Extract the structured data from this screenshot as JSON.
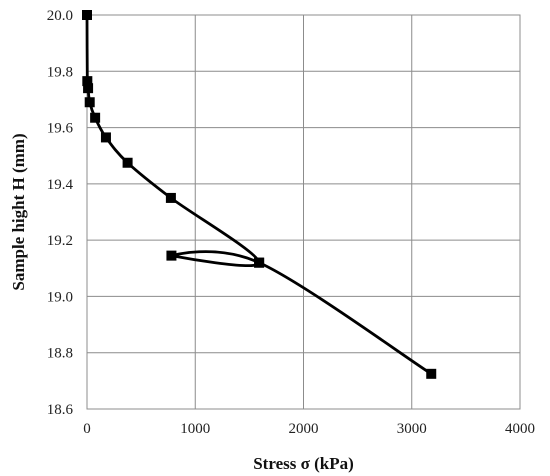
{
  "chart_data": {
    "type": "line",
    "title": "",
    "xlabel": "Stress σ (kPa)",
    "ylabel": "Sample hight H (mm)",
    "xlim": [
      0,
      4000
    ],
    "ylim": [
      18.6,
      20.0
    ],
    "x_ticks": [
      "0",
      "1000",
      "2000",
      "3000",
      "4000"
    ],
    "y_ticks": [
      "18.6",
      "18.8",
      "19.0",
      "19.2",
      "19.4",
      "19.6",
      "19.8",
      "20.0"
    ],
    "grid": true,
    "legend": "none",
    "series": [
      {
        "marker": "square",
        "color": "#000000",
        "points": [
          {
            "x": 0,
            "y": 20.0
          },
          {
            "x": 3,
            "y": 19.765
          },
          {
            "x": 10,
            "y": 19.74
          },
          {
            "x": 25,
            "y": 19.69
          },
          {
            "x": 75,
            "y": 19.635
          },
          {
            "x": 175,
            "y": 19.565
          },
          {
            "x": 375,
            "y": 19.475
          },
          {
            "x": 775,
            "y": 19.35
          },
          {
            "x": 1590,
            "y": 19.12
          },
          {
            "x": 780,
            "y": 19.145
          },
          {
            "x": 1590,
            "y": 19.12
          },
          {
            "x": 3180,
            "y": 18.725
          }
        ]
      }
    ]
  }
}
